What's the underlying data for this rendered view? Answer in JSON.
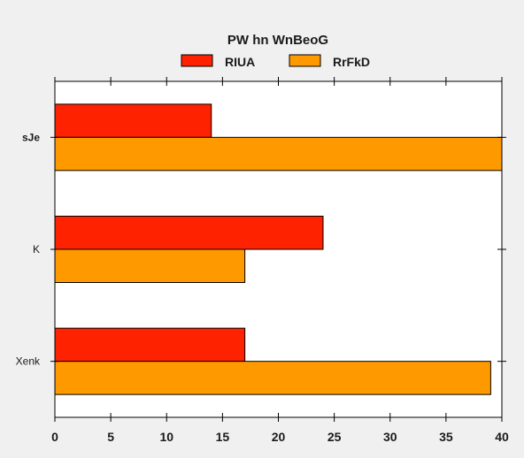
{
  "chart_data": {
    "type": "bar",
    "orientation": "horizontal",
    "title": "PW hn WnBeoG",
    "xlabel": "",
    "ylabel": "",
    "xlim": [
      0,
      40
    ],
    "xticks": [
      0,
      5,
      10,
      15,
      20,
      25,
      30,
      35,
      40
    ],
    "categories": [
      "sJe",
      "K",
      "Xenk"
    ],
    "category_bold": [
      true,
      false,
      false
    ],
    "series": [
      {
        "name": "RIUA",
        "color": "#ff2200",
        "values": [
          14,
          24,
          17
        ]
      },
      {
        "name": "RrFkD",
        "color": "#ff9900",
        "values": [
          40,
          17,
          39
        ]
      }
    ],
    "legend": {
      "placement": "top",
      "columns": 2
    },
    "grid": false
  }
}
